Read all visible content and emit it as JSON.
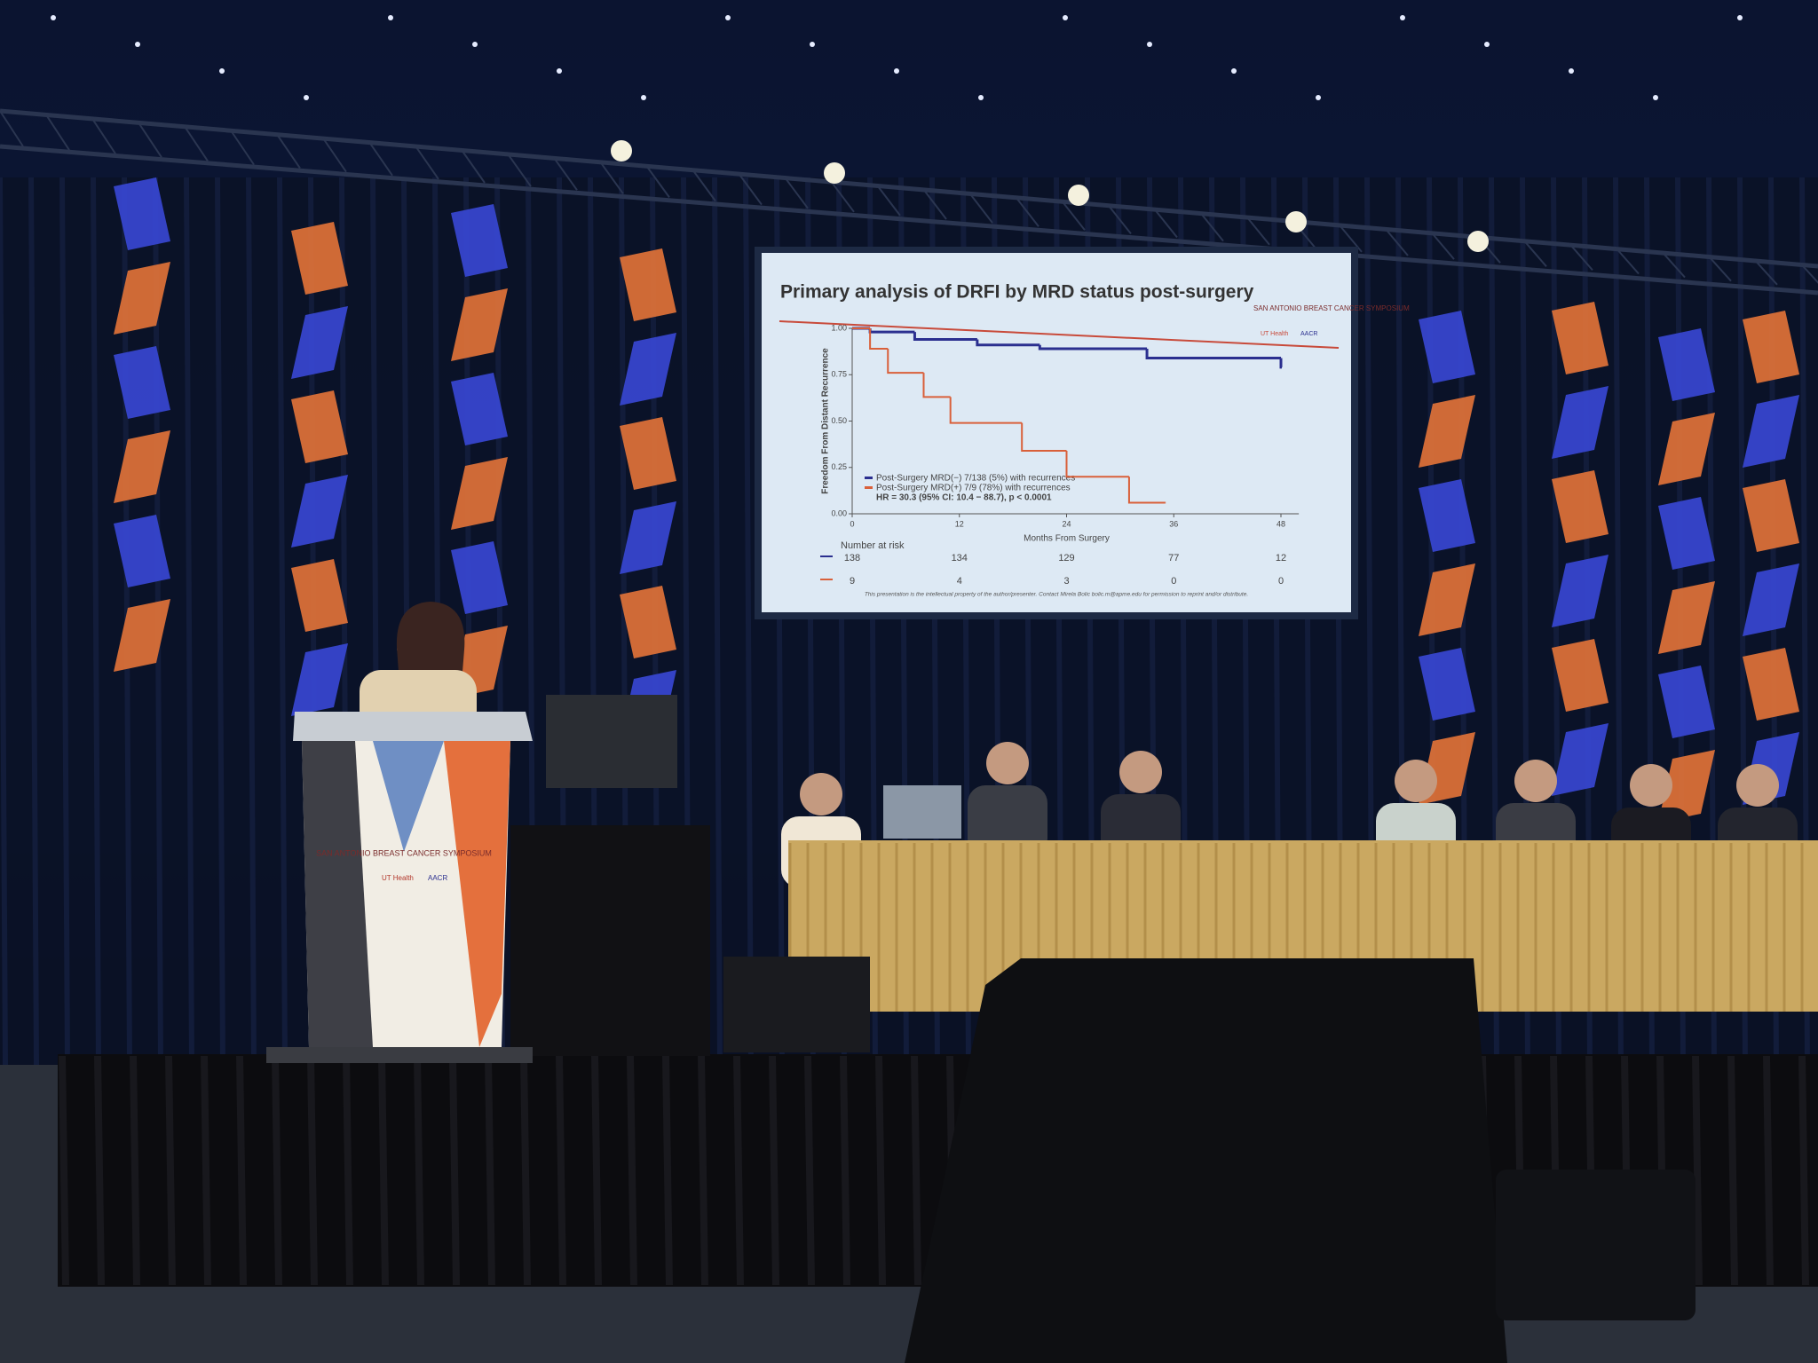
{
  "slide": {
    "title": "Primary analysis of DRFI by MRD status post-surgery",
    "logo": {
      "name": "SAN ANTONIO BREAST CANCER SYMPOSIUM",
      "org1": "UT Health",
      "org2": "AACR"
    },
    "chart": {
      "type": "line",
      "y_label": "Freedom From Distant Recurrence",
      "x_label": "Months From Surgery",
      "xlim": [
        0,
        50
      ],
      "ylim": [
        0,
        1
      ],
      "xticks": [
        0,
        12,
        24,
        36,
        48
      ],
      "yticks": [
        {
          "value": 0,
          "label": "0.00"
        },
        {
          "value": 0.25,
          "label": "0.25"
        },
        {
          "value": 0.5,
          "label": "0.50"
        },
        {
          "value": 0.75,
          "label": "0.75"
        },
        {
          "value": 1,
          "label": "1.00"
        }
      ],
      "series": [
        {
          "name": "Post-Surgery MRD(−) 7/138 (5%) with recurrences",
          "color": "#2b2f8f",
          "x": [
            0,
            2,
            7,
            14,
            21,
            33,
            48
          ],
          "y": [
            1,
            0.98,
            0.94,
            0.91,
            0.89,
            0.84,
            0.79
          ]
        },
        {
          "name": "Post-Surgery MRD(+) 7/9 (78%) with recurrences",
          "color": "#d9603a",
          "x": [
            0,
            2,
            4,
            8,
            11,
            19,
            24,
            31,
            35
          ],
          "y": [
            1,
            0.89,
            0.76,
            0.63,
            0.49,
            0.34,
            0.2,
            0.06,
            0.06
          ]
        }
      ],
      "annotation": "HR = 30.3 (95% CI: 10.4 − 88.7), p < 0.0001",
      "risk_table": {
        "title": "Number at risk",
        "rows": [
          [
            138,
            134,
            129,
            77,
            12
          ],
          [
            9,
            4,
            3,
            0,
            0
          ]
        ]
      }
    },
    "footer": "This presentation is the intellectual property of the author/presenter. Contact Mirela Bolic bolic.m@apme.edu for permission to reprint and/or distribute."
  },
  "podium": {
    "name": "SAN ANTONIO BREAST CANCER SYMPOSIUM",
    "org1": "UT Health",
    "org2": "AACR"
  }
}
